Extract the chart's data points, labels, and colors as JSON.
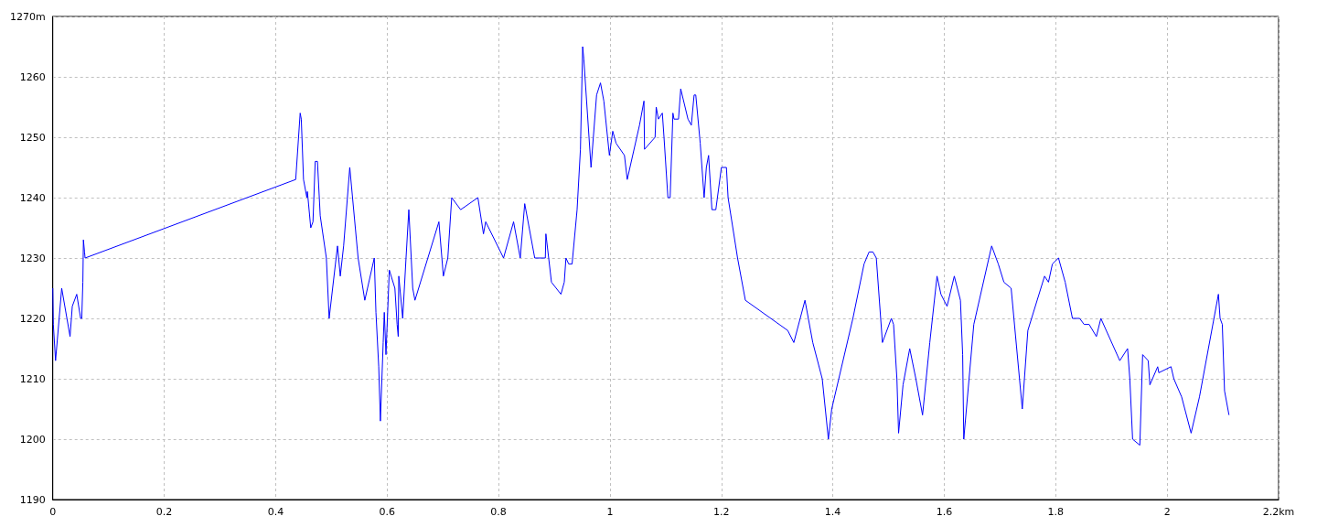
{
  "chart_data": {
    "type": "line",
    "x": [
      0,
      0.001,
      0.005,
      0.016,
      0.031,
      0.035,
      0.043,
      0.05,
      0.052,
      0.054,
      0.055,
      0.057,
      0.058,
      0.436,
      0.444,
      0.446,
      0.45,
      0.456,
      0.457,
      0.463,
      0.467,
      0.471,
      0.475,
      0.48,
      0.491,
      0.496,
      0.511,
      0.516,
      0.522,
      0.533,
      0.548,
      0.56,
      0.577,
      0.58,
      0.585,
      0.588,
      0.593,
      0.595,
      0.598,
      0.604,
      0.614,
      0.618,
      0.62,
      0.621,
      0.628,
      0.634,
      0.639,
      0.646,
      0.65,
      0.693,
      0.701,
      0.709,
      0.716,
      0.732,
      0.763,
      0.773,
      0.777,
      0.809,
      0.827,
      0.839,
      0.847,
      0.855,
      0.865,
      0.884,
      0.885,
      0.895,
      0.912,
      0.918,
      0.921,
      0.926,
      0.932,
      0.941,
      0.947,
      0.951,
      0.953,
      0.966,
      0.976,
      0.983,
      0.989,
      0.999,
      1.005,
      1.011,
      1.026,
      1.031,
      1.053,
      1.061,
      1.062,
      1.081,
      1.083,
      1.087,
      1.094,
      1.097,
      1.104,
      1.108,
      1.113,
      1.115,
      1.123,
      1.127,
      1.14,
      1.146,
      1.151,
      1.154,
      1.162,
      1.169,
      1.173,
      1.177,
      1.183,
      1.19,
      1.2,
      1.209,
      1.212,
      1.229,
      1.243,
      1.319,
      1.33,
      1.35,
      1.364,
      1.381,
      1.392,
      1.398,
      1.436,
      1.456,
      1.465,
      1.472,
      1.478,
      1.489,
      1.505,
      1.509,
      1.515,
      1.518,
      1.526,
      1.538,
      1.549,
      1.561,
      1.574,
      1.587,
      1.594,
      1.605,
      1.618,
      1.629,
      1.633,
      1.635,
      1.653,
      1.685,
      1.697,
      1.707,
      1.72,
      1.74,
      1.75,
      1.78,
      1.787,
      1.794,
      1.805,
      1.817,
      1.83,
      1.843,
      1.851,
      1.86,
      1.873,
      1.881,
      1.915,
      1.929,
      1.933,
      1.938,
      1.951,
      1.956,
      1.966,
      1.969,
      1.983,
      1.985,
      2.007,
      2.012,
      2.026,
      2.043,
      2.058,
      2.092,
      2.095,
      2.099,
      2.103,
      2.111
    ],
    "series": [
      {
        "color": "#0000ff",
        "values": [
          1225,
          1219,
          1213,
          1225,
          1217,
          1222,
          1224,
          1220,
          1220,
          1226,
          1233,
          1231,
          1230,
          1243,
          1254,
          1253,
          1243,
          1240,
          1241,
          1235,
          1236,
          1246,
          1246,
          1237,
          1230,
          1220,
          1232,
          1227,
          1232,
          1245,
          1230,
          1223,
          1230,
          1221,
          1212,
          1203,
          1216,
          1221,
          1214,
          1228,
          1225,
          1219,
          1217,
          1227,
          1220,
          1230,
          1238,
          1225,
          1223,
          1236,
          1227,
          1230,
          1240,
          1238,
          1240,
          1234,
          1236,
          1230,
          1236,
          1230,
          1239,
          1235,
          1230,
          1230,
          1234,
          1226,
          1224,
          1226,
          1230,
          1229,
          1229,
          1238,
          1248,
          1265,
          1263,
          1245,
          1257,
          1259,
          1256,
          1247,
          1251,
          1249,
          1247,
          1243,
          1252,
          1256,
          1248,
          1250,
          1255,
          1253,
          1254,
          1250,
          1240,
          1240,
          1254,
          1253,
          1253,
          1258,
          1253,
          1252,
          1257,
          1257,
          1249,
          1240,
          1245,
          1247,
          1238,
          1238,
          1245,
          1245,
          1240,
          1230,
          1223,
          1218,
          1216,
          1223,
          1216,
          1210,
          1200,
          1205,
          1220,
          1229,
          1231,
          1231,
          1230,
          1216,
          1220,
          1219,
          1210,
          1201,
          1209,
          1215,
          1210,
          1204,
          1216,
          1227,
          1224,
          1222,
          1227,
          1223,
          1214,
          1200,
          1219,
          1232,
          1229,
          1226,
          1225,
          1205,
          1218,
          1227,
          1226,
          1229,
          1230,
          1226,
          1220,
          1220,
          1219,
          1219,
          1217,
          1220,
          1213,
          1215,
          1210,
          1200,
          1199,
          1214,
          1213,
          1209,
          1212,
          1211,
          1212,
          1210,
          1207,
          1201,
          1207,
          1224,
          1220,
          1219,
          1208,
          1204
        ]
      }
    ],
    "xlim": [
      0,
      2.2
    ],
    "xticks": [
      0,
      0.2,
      0.4,
      0.6,
      0.8,
      1,
      1.2,
      1.4,
      1.6,
      1.8,
      2,
      {
        "value": 2.2,
        "label": "2.2km"
      }
    ],
    "ylim": [
      1190,
      1270
    ],
    "yticks": [
      1190,
      1200,
      1210,
      1220,
      1230,
      1240,
      1250,
      1260,
      {
        "value": 1270,
        "label": "1270m"
      }
    ],
    "grid": true,
    "marker": "none",
    "line_style": "solid"
  }
}
